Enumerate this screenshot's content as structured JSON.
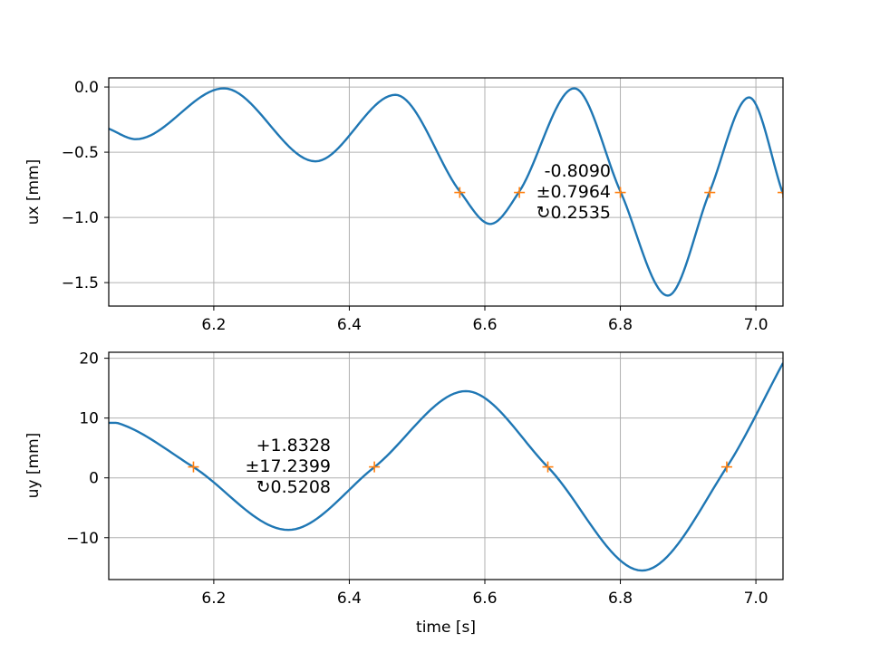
{
  "chart_data": [
    {
      "type": "line",
      "xlabel": "",
      "ylabel": "ux [mm]",
      "xlim": [
        6.045,
        7.04
      ],
      "ylim": [
        -1.68,
        0.07
      ],
      "xticks": [
        6.2,
        6.4,
        6.6,
        6.8,
        7.0
      ],
      "xtick_labels": [
        "6.2",
        "6.4",
        "6.6",
        "6.8",
        "7.0"
      ],
      "yticks": [
        0.0,
        -0.5,
        -1.0,
        -1.5
      ],
      "ytick_labels": [
        "0.0",
        "−0.5",
        "−1.0",
        "−1.5"
      ],
      "grid": true,
      "series": [
        {
          "color": "#1f77b4",
          "x": [
            6.045,
            6.085,
            6.215,
            6.35,
            6.468,
            6.563,
            6.608,
            6.651,
            6.732,
            6.8,
            6.87,
            6.932,
            6.99,
            7.04
          ],
          "y": [
            -0.32,
            -0.4,
            -0.01,
            -0.57,
            -0.06,
            -0.8,
            -1.05,
            -0.8,
            -0.01,
            -0.8,
            -1.6,
            -0.8,
            -0.08,
            -0.82
          ]
        }
      ],
      "markers": {
        "color": "#ff7f0e",
        "symbol": "+",
        "x": [
          6.563,
          6.651,
          6.8,
          6.932,
          7.04
        ],
        "y": [
          -0.809,
          -0.809,
          -0.809,
          -0.809,
          -0.809
        ]
      },
      "annotation": [
        "-0.8090",
        "±0.7964",
        "↻0.2535"
      ]
    },
    {
      "type": "line",
      "xlabel": "time [s]",
      "ylabel": "uy [mm]",
      "xlim": [
        6.045,
        7.04
      ],
      "ylim": [
        -17.0,
        21.0
      ],
      "xticks": [
        6.2,
        6.4,
        6.6,
        6.8,
        7.0
      ],
      "xtick_labels": [
        "6.2",
        "6.4",
        "6.6",
        "6.8",
        "7.0"
      ],
      "yticks": [
        20,
        10,
        0,
        -10
      ],
      "ytick_labels": [
        "20",
        "10",
        "0",
        "−10"
      ],
      "grid": true,
      "series": [
        {
          "color": "#1f77b4",
          "x": [
            6.045,
            6.06,
            6.17,
            6.31,
            6.437,
            6.572,
            6.693,
            6.832,
            6.957,
            7.04
          ],
          "y": [
            9.2,
            9.1,
            1.8,
            -8.7,
            1.8,
            14.5,
            1.8,
            -15.5,
            1.8,
            19.2
          ]
        }
      ],
      "markers": {
        "color": "#ff7f0e",
        "symbol": "+",
        "x": [
          6.17,
          6.437,
          6.693,
          6.957
        ],
        "y": [
          1.833,
          1.833,
          1.833,
          1.833
        ]
      },
      "annotation": [
        "+1.8328",
        "±17.2399",
        "↻0.5208"
      ]
    }
  ]
}
